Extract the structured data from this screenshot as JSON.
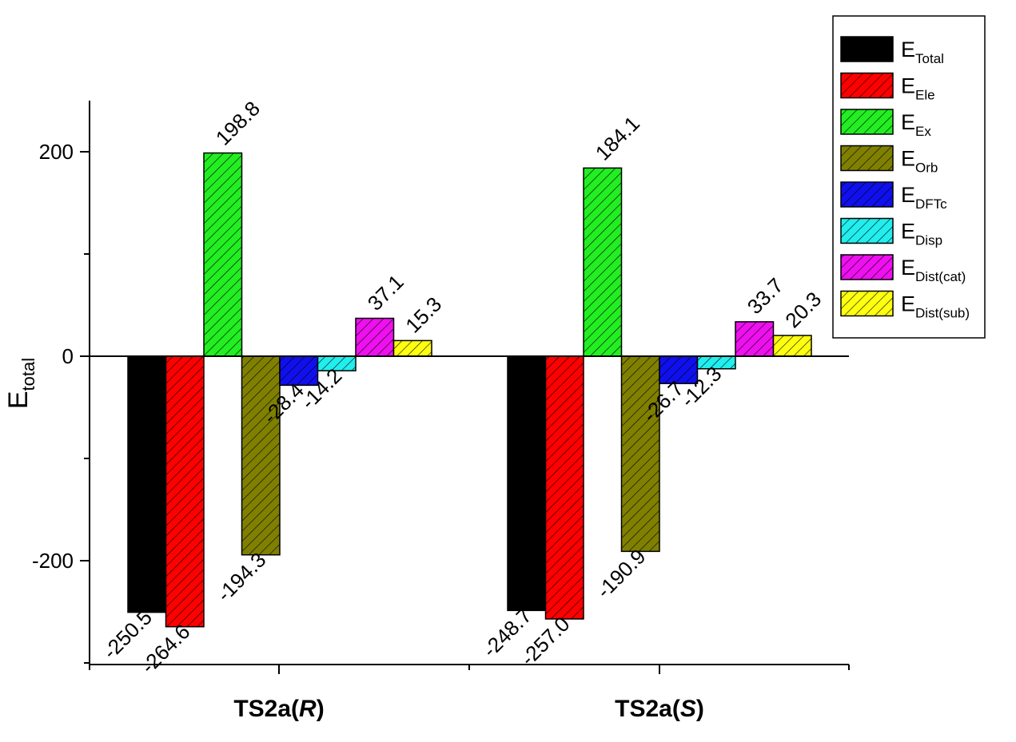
{
  "chart_data": {
    "type": "bar",
    "ylabel": {
      "main": "E",
      "sub": "total"
    },
    "ylim": [
      -300,
      250
    ],
    "yticks": [
      -200,
      0,
      200
    ],
    "categories": [
      {
        "prefix": "TS2a(",
        "italic": "R",
        "suffix": ")"
      },
      {
        "prefix": "TS2a(",
        "italic": "S",
        "suffix": ")"
      }
    ],
    "series": [
      {
        "name_main": "E",
        "name_sub": "Total",
        "color": "#000000",
        "hatch": false,
        "values": [
          -250.5,
          -248.7
        ],
        "labels": [
          "-250.5",
          "-248.7"
        ]
      },
      {
        "name_main": "E",
        "name_sub": "Ele",
        "color": "#ff0000",
        "hatch": true,
        "values": [
          -264.6,
          -257.0
        ],
        "labels": [
          "-264.6",
          "-257.0"
        ]
      },
      {
        "name_main": "E",
        "name_sub": "Ex",
        "color": "#22ee22",
        "hatch": true,
        "values": [
          198.8,
          184.1
        ],
        "labels": [
          "198.8",
          "184.1"
        ]
      },
      {
        "name_main": "E",
        "name_sub": "Orb",
        "color": "#808000",
        "hatch": true,
        "values": [
          -194.3,
          -190.9
        ],
        "labels": [
          "-194.3",
          "-190.9"
        ]
      },
      {
        "name_main": "E",
        "name_sub": "DFTc",
        "color": "#1010ee",
        "hatch": true,
        "values": [
          -28.4,
          -26.7
        ],
        "labels": [
          "-28.4",
          "-26.7"
        ]
      },
      {
        "name_main": "E",
        "name_sub": "Disp",
        "color": "#22eeee",
        "hatch": true,
        "values": [
          -14.2,
          -12.3
        ],
        "labels": [
          "-14.2",
          "-12.3"
        ]
      },
      {
        "name_main": "E",
        "name_sub": "Dist(cat)",
        "color": "#ee10ee",
        "hatch": true,
        "values": [
          37.1,
          33.7
        ],
        "labels": [
          "37.1",
          "33.7"
        ]
      },
      {
        "name_main": "E",
        "name_sub": "Dist(sub)",
        "color": "#ffff10",
        "hatch": true,
        "values": [
          15.3,
          20.3
        ],
        "labels": [
          "15.3",
          "20.3"
        ]
      }
    ],
    "legend_position": "top-right",
    "grid": false
  }
}
